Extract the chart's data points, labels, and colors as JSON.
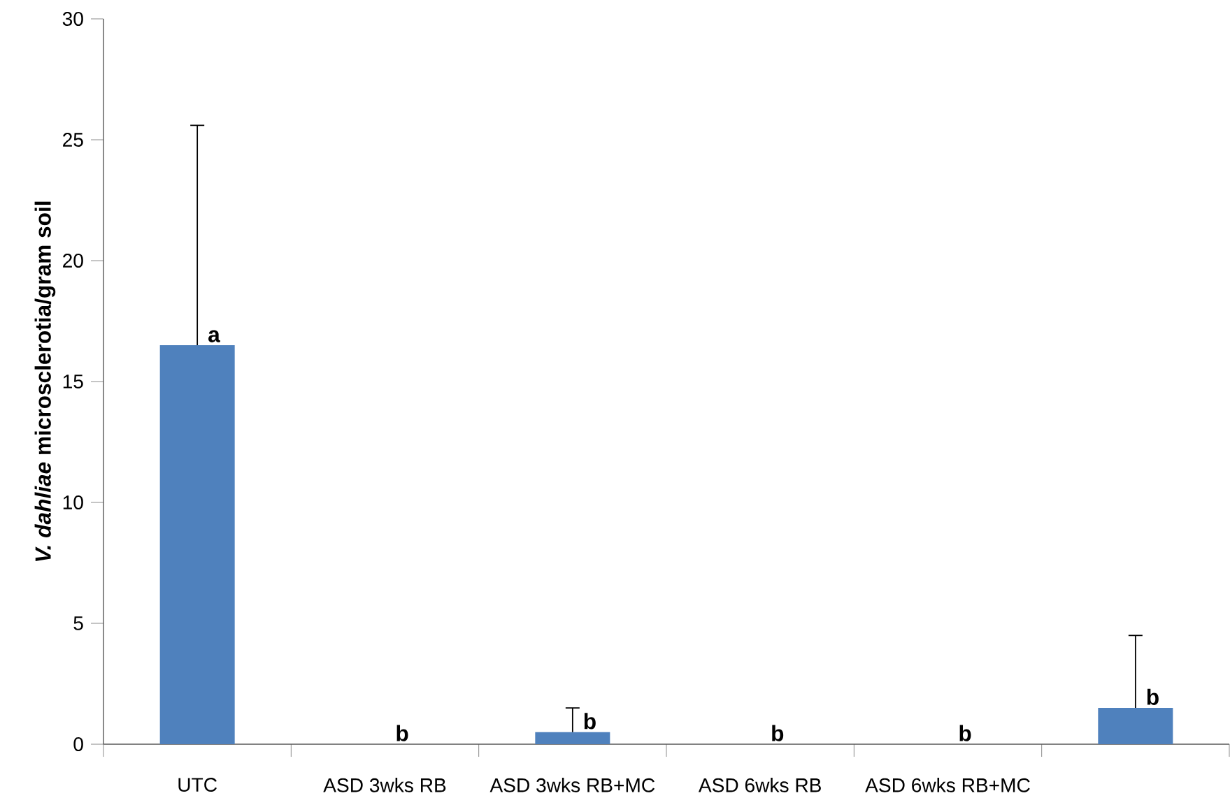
{
  "chart_data": {
    "type": "bar",
    "ylabel": "*V. dahliae* microsclerotia/gram soil",
    "categories": [
      "UTC",
      "ASD 3wks RB",
      "ASD 3wks RB+MC",
      "ASD 6wks RB",
      "ASD 6wks RB+MC",
      null
    ],
    "values": [
      16.5,
      0,
      0.5,
      0,
      0,
      1.5
    ],
    "errors": [
      [
        16.5,
        25.6
      ],
      null,
      [
        0.5,
        1.5
      ],
      null,
      null,
      [
        1.5,
        4.5
      ]
    ],
    "color": "#4f81bd",
    "ylim": [
      0,
      30
    ],
    "yticks": [
      0,
      5,
      10,
      15,
      20,
      25,
      30
    ],
    "annotations": [
      "a",
      "b",
      "b",
      "b",
      "b",
      "b"
    ],
    "grid": false
  }
}
